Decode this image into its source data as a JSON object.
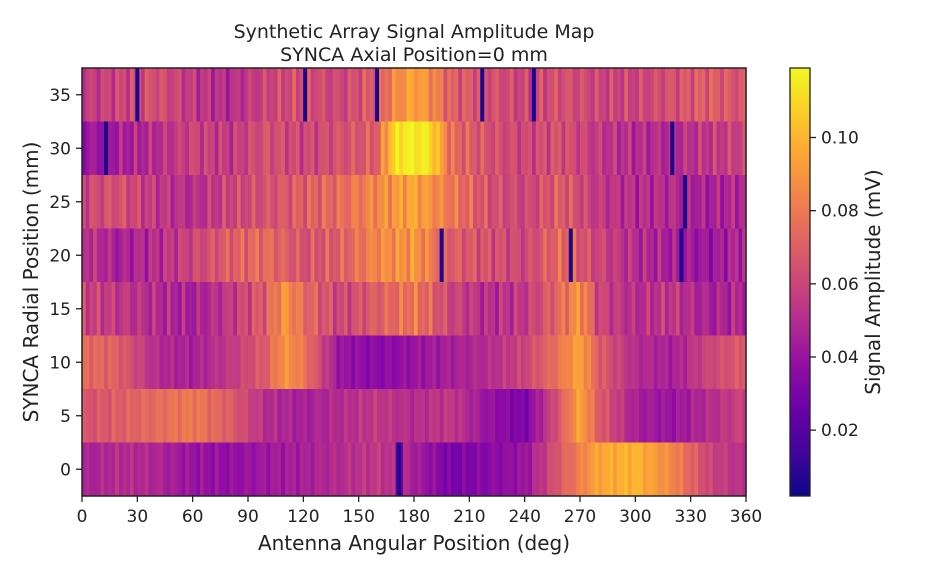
{
  "chart_data": {
    "type": "heatmap",
    "title": "Synthetic Array Signal Amplitude Map",
    "subtitle": "SYNCA Axial Position=0 mm",
    "xlabel": "Antenna Angular Position (deg)",
    "ylabel": "SYNCA Radial Position (mm)",
    "colorbar_label": "Signal Amplitude (mV)",
    "xlim": [
      0,
      360
    ],
    "ylim": [
      -2.5,
      37.5
    ],
    "xticks": [
      "0",
      "30",
      "60",
      "90",
      "120",
      "150",
      "180",
      "210",
      "240",
      "270",
      "300",
      "330",
      "360"
    ],
    "yticks": [
      "0",
      "5",
      "10",
      "15",
      "20",
      "25",
      "30",
      "35"
    ],
    "colorbar_ticks": [
      "0.02",
      "0.04",
      "0.06",
      "0.08",
      "0.10"
    ],
    "color_range": [
      0.002,
      0.119
    ],
    "colormap": "plasma",
    "grid": false,
    "rows": [
      {
        "radial_mm": 0,
        "sample_angles_deg": [
          0,
          20,
          40,
          60,
          80,
          100,
          120,
          140,
          160,
          170,
          172,
          174,
          180,
          200,
          220,
          240,
          260,
          280,
          300,
          320,
          340,
          360
        ],
        "values": [
          0.045,
          0.05,
          0.048,
          0.04,
          0.038,
          0.042,
          0.045,
          0.05,
          0.055,
          0.05,
          0.005,
          0.05,
          0.045,
          0.03,
          0.035,
          0.04,
          0.07,
          0.095,
          0.1,
          0.085,
          0.06,
          0.05
        ]
      },
      {
        "radial_mm": 5,
        "sample_angles_deg": [
          0,
          20,
          40,
          60,
          80,
          100,
          120,
          140,
          160,
          180,
          200,
          220,
          240,
          260,
          270,
          280,
          300,
          320,
          340,
          360
        ],
        "values": [
          0.065,
          0.07,
          0.075,
          0.08,
          0.07,
          0.05,
          0.045,
          0.05,
          0.055,
          0.05,
          0.055,
          0.04,
          0.03,
          0.07,
          0.095,
          0.07,
          0.045,
          0.04,
          0.05,
          0.06
        ]
      },
      {
        "radial_mm": 10,
        "sample_angles_deg": [
          0,
          20,
          40,
          60,
          80,
          100,
          110,
          120,
          140,
          160,
          180,
          200,
          220,
          240,
          260,
          270,
          280,
          300,
          320,
          340,
          360
        ],
        "values": [
          0.075,
          0.07,
          0.05,
          0.045,
          0.055,
          0.07,
          0.09,
          0.08,
          0.04,
          0.035,
          0.04,
          0.045,
          0.05,
          0.06,
          0.08,
          0.095,
          0.07,
          0.05,
          0.045,
          0.06,
          0.07
        ]
      },
      {
        "radial_mm": 15,
        "sample_angles_deg": [
          0,
          20,
          40,
          60,
          80,
          100,
          110,
          120,
          140,
          160,
          180,
          200,
          220,
          240,
          260,
          270,
          280,
          300,
          320,
          340,
          360
        ],
        "values": [
          0.06,
          0.055,
          0.05,
          0.045,
          0.055,
          0.07,
          0.09,
          0.075,
          0.06,
          0.07,
          0.08,
          0.06,
          0.05,
          0.055,
          0.075,
          0.09,
          0.06,
          0.05,
          0.055,
          0.045,
          0.05
        ]
      },
      {
        "radial_mm": 20,
        "sample_angles_deg": [
          0,
          20,
          40,
          60,
          80,
          100,
          120,
          140,
          160,
          180,
          200,
          220,
          240,
          260,
          280,
          300,
          320,
          340,
          360
        ],
        "values": [
          0.055,
          0.045,
          0.05,
          0.06,
          0.07,
          0.075,
          0.065,
          0.07,
          0.085,
          0.09,
          0.07,
          0.065,
          0.06,
          0.075,
          0.06,
          0.05,
          0.045,
          0.04,
          0.05
        ]
      },
      {
        "radial_mm": 25,
        "sample_angles_deg": [
          0,
          20,
          40,
          60,
          80,
          100,
          120,
          140,
          160,
          180,
          200,
          220,
          240,
          260,
          280,
          300,
          320,
          340,
          360
        ],
        "values": [
          0.06,
          0.065,
          0.055,
          0.05,
          0.06,
          0.065,
          0.07,
          0.075,
          0.085,
          0.095,
          0.08,
          0.065,
          0.06,
          0.07,
          0.055,
          0.05,
          0.05,
          0.045,
          0.05
        ]
      },
      {
        "radial_mm": 30,
        "sample_angles_deg": [
          0,
          20,
          40,
          60,
          80,
          100,
          120,
          140,
          160,
          170,
          180,
          190,
          200,
          220,
          240,
          260,
          280,
          300,
          320,
          340,
          360
        ],
        "values": [
          0.04,
          0.045,
          0.05,
          0.06,
          0.055,
          0.065,
          0.06,
          0.065,
          0.07,
          0.115,
          0.118,
          0.11,
          0.075,
          0.065,
          0.06,
          0.065,
          0.055,
          0.05,
          0.05,
          0.055,
          0.06
        ]
      },
      {
        "radial_mm": 35,
        "sample_angles_deg": [
          0,
          20,
          40,
          60,
          80,
          100,
          120,
          140,
          160,
          170,
          180,
          190,
          200,
          220,
          240,
          260,
          280,
          300,
          320,
          340,
          360
        ],
        "values": [
          0.055,
          0.06,
          0.065,
          0.055,
          0.05,
          0.06,
          0.065,
          0.06,
          0.07,
          0.085,
          0.095,
          0.085,
          0.07,
          0.065,
          0.06,
          0.065,
          0.06,
          0.06,
          0.065,
          0.07,
          0.065
        ]
      }
    ],
    "dips": [
      {
        "radial_mm": 35,
        "angle_deg": 30
      },
      {
        "radial_mm": 35,
        "angle_deg": 121
      },
      {
        "radial_mm": 35,
        "angle_deg": 160
      },
      {
        "radial_mm": 35,
        "angle_deg": 217
      },
      {
        "radial_mm": 35,
        "angle_deg": 245
      },
      {
        "radial_mm": 30,
        "angle_deg": 13
      },
      {
        "radial_mm": 30,
        "angle_deg": 320
      },
      {
        "radial_mm": 25,
        "angle_deg": 327
      },
      {
        "radial_mm": 20,
        "angle_deg": 195
      },
      {
        "radial_mm": 20,
        "angle_deg": 265
      },
      {
        "radial_mm": 20,
        "angle_deg": 325
      },
      {
        "radial_mm": 0,
        "angle_deg": 172
      }
    ]
  }
}
